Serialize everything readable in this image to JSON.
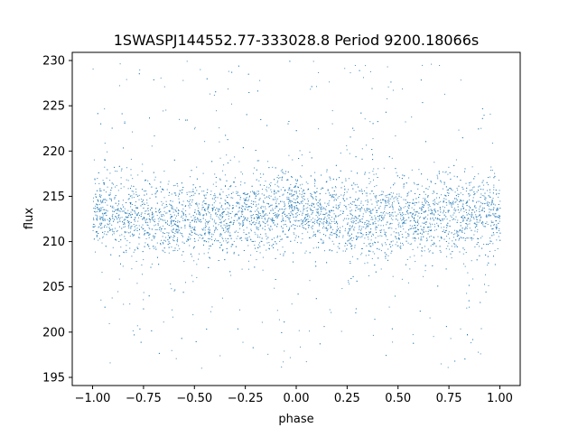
{
  "chart_data": {
    "type": "scatter",
    "title": "1SWASPJ144552.77-333028.8 Period 9200.18066s",
    "xlabel": "phase",
    "ylabel": "flux",
    "xlim": [
      -1.1,
      1.1
    ],
    "ylim": [
      194.1,
      230.9
    ],
    "x_ticks": [
      {
        "value": -1.0,
        "label": "−1.00"
      },
      {
        "value": -0.75,
        "label": "−0.75"
      },
      {
        "value": -0.5,
        "label": "−0.50"
      },
      {
        "value": -0.25,
        "label": "−0.25"
      },
      {
        "value": 0.0,
        "label": "0.00"
      },
      {
        "value": 0.25,
        "label": "0.25"
      },
      {
        "value": 0.5,
        "label": "0.50"
      },
      {
        "value": 0.75,
        "label": "0.75"
      },
      {
        "value": 1.0,
        "label": "1.00"
      }
    ],
    "y_ticks": [
      {
        "value": 195,
        "label": "195"
      },
      {
        "value": 200,
        "label": "200"
      },
      {
        "value": 205,
        "label": "205"
      },
      {
        "value": 210,
        "label": "210"
      },
      {
        "value": 215,
        "label": "215"
      },
      {
        "value": 220,
        "label": "220"
      },
      {
        "value": 225,
        "label": "225"
      },
      {
        "value": 230,
        "label": "230"
      }
    ],
    "grid": false,
    "marker_color": "#1f77b4",
    "series": [
      {
        "x_range": [
          -1.0,
          1.0
        ],
        "y_range": [
          196,
          230
        ],
        "dense_band": [
          {
            "phase": -1.0,
            "low": 209.5,
            "high": 217.5
          },
          {
            "phase": -0.75,
            "low": 208.5,
            "high": 217.0
          },
          {
            "phase": -0.5,
            "low": 208.0,
            "high": 216.5
          },
          {
            "phase": -0.25,
            "low": 208.5,
            "high": 217.5
          },
          {
            "phase": 0.0,
            "low": 209.5,
            "high": 217.5
          },
          {
            "phase": 0.25,
            "low": 208.5,
            "high": 217.0
          },
          {
            "phase": 0.5,
            "low": 208.0,
            "high": 216.5
          },
          {
            "phase": 0.75,
            "low": 208.5,
            "high": 217.5
          },
          {
            "phase": 1.0,
            "low": 209.5,
            "high": 217.5
          }
        ],
        "median": [
          {
            "phase": -1.0,
            "flux": 213.5
          },
          {
            "phase": -0.75,
            "flux": 212.8
          },
          {
            "phase": -0.5,
            "flux": 212.4
          },
          {
            "phase": -0.25,
            "flux": 212.9
          },
          {
            "phase": 0.0,
            "flux": 213.5
          },
          {
            "phase": 0.25,
            "flux": 212.8
          },
          {
            "phase": 0.5,
            "flux": 212.4
          },
          {
            "phase": 0.75,
            "flux": 212.9
          },
          {
            "phase": 1.0,
            "flux": 213.5
          }
        ]
      }
    ]
  }
}
